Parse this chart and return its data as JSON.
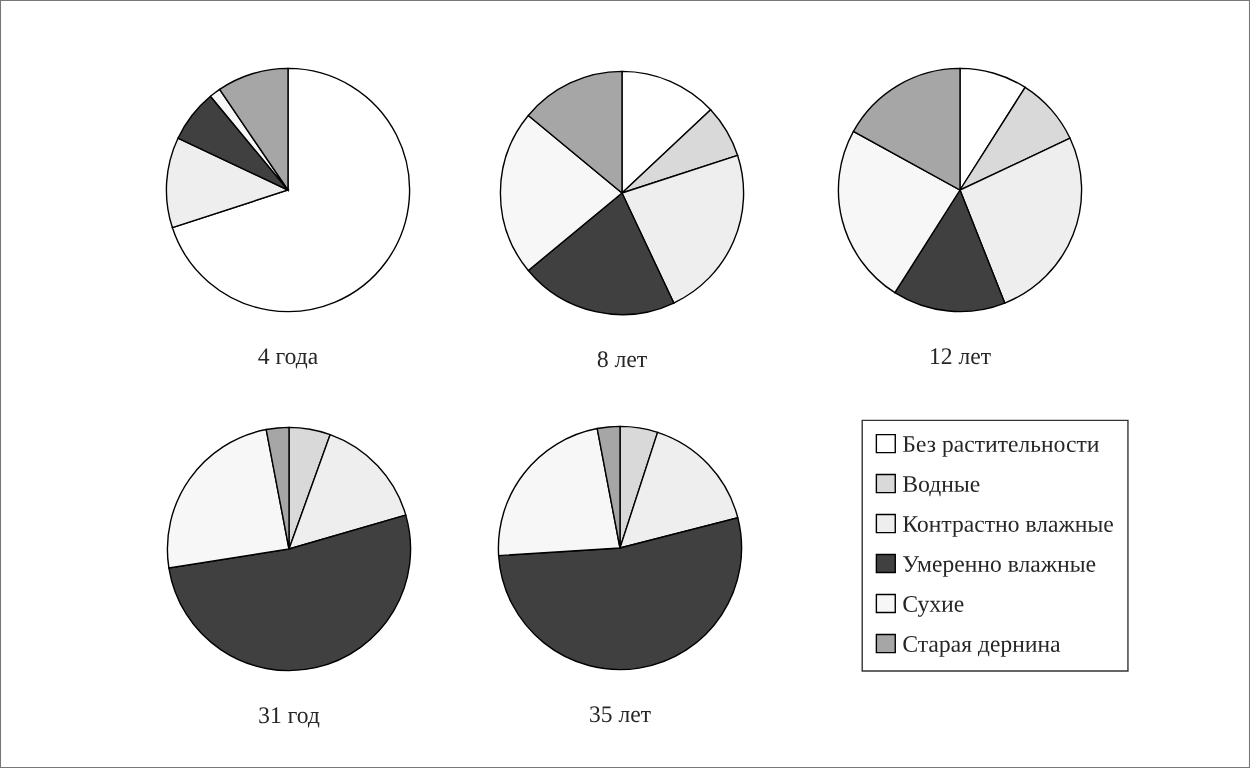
{
  "chart_data": [
    {
      "type": "pie",
      "xlabel": "4 года",
      "categories": [
        "Без растительности",
        "Водные",
        "Контрастно влажные",
        "Умеренно влажные",
        "Сухие",
        "Старая дернина"
      ],
      "values": [
        70,
        0,
        12,
        7,
        1.5,
        9.5
      ],
      "colors": [
        "#ffffff",
        "#d9d9d9",
        "#eeeeee",
        "#404040",
        "#f7f7f7",
        "#a6a6a6"
      ],
      "legend": "bottom right"
    },
    {
      "type": "pie",
      "xlabel": "8 лет",
      "categories": [
        null,
        null,
        null,
        null,
        null,
        null
      ],
      "values": [
        13,
        7,
        23,
        21,
        22,
        14
      ],
      "colors": [
        "#ffffff",
        "#d9d9d9",
        "#eeeeee",
        "#404040",
        "#f7f7f7",
        "#a6a6a6"
      ],
      "legend": false
    },
    {
      "type": "pie",
      "xlabel": "12 лет",
      "categories": [
        null,
        null,
        null,
        null,
        null,
        null
      ],
      "values": [
        9,
        9,
        26,
        15,
        24,
        17
      ],
      "colors": [
        "#ffffff",
        "#d9d9d9",
        "#eeeeee",
        "#404040",
        "#f7f7f7",
        "#a6a6a6"
      ],
      "legend": false
    },
    {
      "type": "pie",
      "xlabel": "31 год",
      "categories": [
        null,
        null,
        null,
        null,
        null,
        null
      ],
      "values": [
        0,
        5.5,
        15,
        52,
        24.5,
        3
      ],
      "colors": [
        "#ffffff",
        "#d9d9d9",
        "#eeeeee",
        "#404040",
        "#f7f7f7",
        "#a6a6a6"
      ],
      "legend": false
    },
    {
      "type": "pie",
      "xlabel": "35 лет",
      "categories": [
        null,
        null,
        null,
        null,
        null,
        null
      ],
      "values": [
        0,
        5,
        16,
        53,
        23,
        3
      ],
      "colors": [
        "#ffffff",
        "#d9d9d9",
        "#eeeeee",
        "#404040",
        "#f7f7f7",
        "#a6a6a6"
      ],
      "legend": false
    }
  ]
}
